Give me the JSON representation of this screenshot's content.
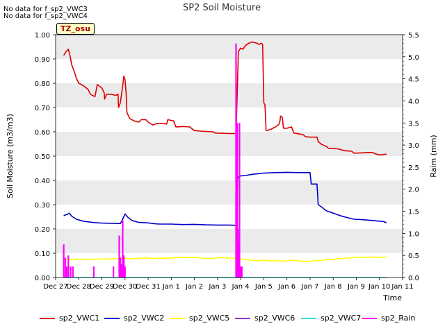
{
  "notes": [
    "No data for f_sp2_VWC3",
    "No data for f_sp2_VWC4"
  ],
  "badge": "TZ_osu",
  "colors": {
    "sp2_VWC1": "#dd0000",
    "sp2_VWC2": "#0000cc",
    "sp2_VWC5": "#ffff00",
    "sp2_VWC6": "#9933cc",
    "sp2_VWC7": "#33dddd",
    "sp2_Rain": "#ff00ff"
  },
  "chart_data": {
    "type": "line",
    "title": "SP2 Soil Moisture",
    "xlabel": "Time",
    "ylabel": "Soil Moisture (m3/m3)",
    "y2label": "Raim (mm)",
    "x_ticks": [
      "Dec 27",
      "Dec 28",
      "Dec 29",
      "Dec 30",
      "Dec 31",
      "Jan 1",
      "Jan 2",
      "Jan 3",
      "Jan 4",
      "Jan 5",
      "Jan 6",
      "Jan 7",
      "Jan 8",
      "Jan 9",
      "Jan 10",
      "Jan 11"
    ],
    "xlim": [
      0,
      15
    ],
    "ylim": [
      0,
      1.0
    ],
    "y_ticks": [
      "0.00",
      "0.10",
      "0.20",
      "0.30",
      "0.40",
      "0.50",
      "0.60",
      "0.70",
      "0.80",
      "0.90",
      "1.00"
    ],
    "y2lim": [
      0,
      5.5
    ],
    "y2_ticks": [
      "0.0",
      "0.5",
      "1.0",
      "1.5",
      "2.0",
      "2.5",
      "3.0",
      "3.5",
      "4.0",
      "4.5",
      "5.0",
      "5.5"
    ],
    "grid": "horizontal bands",
    "legend": "bottom",
    "series": [
      {
        "name": "sp2_VWC1",
        "axis": "left",
        "points": [
          [
            0.35,
            0.915
          ],
          [
            0.45,
            0.93
          ],
          [
            0.55,
            0.94
          ],
          [
            0.62,
            0.915
          ],
          [
            0.7,
            0.875
          ],
          [
            0.8,
            0.85
          ],
          [
            0.9,
            0.82
          ],
          [
            1.0,
            0.8
          ],
          [
            1.2,
            0.79
          ],
          [
            1.4,
            0.775
          ],
          [
            1.5,
            0.755
          ],
          [
            1.7,
            0.745
          ],
          [
            1.8,
            0.795
          ],
          [
            2.0,
            0.78
          ],
          [
            2.1,
            0.76
          ],
          [
            2.12,
            0.735
          ],
          [
            2.2,
            0.755
          ],
          [
            2.4,
            0.755
          ],
          [
            2.6,
            0.75
          ],
          [
            2.7,
            0.755
          ],
          [
            2.72,
            0.7
          ],
          [
            2.8,
            0.72
          ],
          [
            2.85,
            0.755
          ],
          [
            2.9,
            0.79
          ],
          [
            2.95,
            0.83
          ],
          [
            3.0,
            0.815
          ],
          [
            3.05,
            0.755
          ],
          [
            3.08,
            0.68
          ],
          [
            3.2,
            0.655
          ],
          [
            3.4,
            0.645
          ],
          [
            3.6,
            0.64
          ],
          [
            3.7,
            0.65
          ],
          [
            3.9,
            0.65
          ],
          [
            4.0,
            0.64
          ],
          [
            4.2,
            0.628
          ],
          [
            4.4,
            0.635
          ],
          [
            4.6,
            0.635
          ],
          [
            4.8,
            0.632
          ],
          [
            4.85,
            0.65
          ],
          [
            5.1,
            0.645
          ],
          [
            5.2,
            0.62
          ],
          [
            5.5,
            0.622
          ],
          [
            5.8,
            0.62
          ],
          [
            5.9,
            0.612
          ],
          [
            6.0,
            0.605
          ],
          [
            6.4,
            0.602
          ],
          [
            6.8,
            0.6
          ],
          [
            6.9,
            0.595
          ],
          [
            7.5,
            0.593
          ],
          [
            7.8,
            0.593
          ],
          [
            7.85,
            0.75
          ],
          [
            7.9,
            0.93
          ],
          [
            8.0,
            0.945
          ],
          [
            8.1,
            0.94
          ],
          [
            8.2,
            0.955
          ],
          [
            8.35,
            0.965
          ],
          [
            8.5,
            0.97
          ],
          [
            8.7,
            0.965
          ],
          [
            8.8,
            0.96
          ],
          [
            8.9,
            0.965
          ],
          [
            8.95,
            0.96
          ],
          [
            9.0,
            0.72
          ],
          [
            9.05,
            0.71
          ],
          [
            9.1,
            0.605
          ],
          [
            9.3,
            0.61
          ],
          [
            9.5,
            0.62
          ],
          [
            9.65,
            0.63
          ],
          [
            9.7,
            0.645
          ],
          [
            9.72,
            0.665
          ],
          [
            9.8,
            0.66
          ],
          [
            9.85,
            0.615
          ],
          [
            10.0,
            0.615
          ],
          [
            10.2,
            0.62
          ],
          [
            10.3,
            0.595
          ],
          [
            10.5,
            0.592
          ],
          [
            10.7,
            0.588
          ],
          [
            10.8,
            0.58
          ],
          [
            11.0,
            0.578
          ],
          [
            11.3,
            0.578
          ],
          [
            11.35,
            0.56
          ],
          [
            11.5,
            0.548
          ],
          [
            11.7,
            0.54
          ],
          [
            11.8,
            0.532
          ],
          [
            12.2,
            0.53
          ],
          [
            12.5,
            0.522
          ],
          [
            12.8,
            0.52
          ],
          [
            12.9,
            0.512
          ],
          [
            13.2,
            0.513
          ],
          [
            13.5,
            0.515
          ],
          [
            13.7,
            0.515
          ],
          [
            13.8,
            0.51
          ],
          [
            14.0,
            0.505
          ],
          [
            14.3,
            0.508
          ]
        ]
      },
      {
        "name": "sp2_VWC2",
        "axis": "left",
        "points": [
          [
            0.35,
            0.255
          ],
          [
            0.5,
            0.26
          ],
          [
            0.6,
            0.265
          ],
          [
            0.7,
            0.252
          ],
          [
            0.9,
            0.24
          ],
          [
            1.2,
            0.232
          ],
          [
            1.5,
            0.228
          ],
          [
            1.7,
            0.226
          ],
          [
            2.0,
            0.224
          ],
          [
            2.5,
            0.223
          ],
          [
            2.8,
            0.222
          ],
          [
            2.9,
            0.24
          ],
          [
            3.0,
            0.262
          ],
          [
            3.1,
            0.25
          ],
          [
            3.3,
            0.235
          ],
          [
            3.6,
            0.227
          ],
          [
            4.0,
            0.225
          ],
          [
            4.3,
            0.221
          ],
          [
            4.5,
            0.22
          ],
          [
            5.0,
            0.22
          ],
          [
            5.5,
            0.218
          ],
          [
            6.0,
            0.219
          ],
          [
            6.5,
            0.217
          ],
          [
            7.0,
            0.216
          ],
          [
            7.5,
            0.216
          ],
          [
            7.8,
            0.215
          ],
          [
            7.83,
            0.28
          ],
          [
            7.87,
            0.41
          ],
          [
            7.95,
            0.418
          ],
          [
            8.2,
            0.42
          ],
          [
            8.5,
            0.425
          ],
          [
            8.8,
            0.428
          ],
          [
            9.0,
            0.43
          ],
          [
            9.5,
            0.432
          ],
          [
            10.0,
            0.433
          ],
          [
            10.5,
            0.432
          ],
          [
            10.8,
            0.432
          ],
          [
            11.0,
            0.432
          ],
          [
            11.05,
            0.385
          ],
          [
            11.3,
            0.385
          ],
          [
            11.35,
            0.3
          ],
          [
            11.5,
            0.29
          ],
          [
            11.7,
            0.275
          ],
          [
            12.0,
            0.265
          ],
          [
            12.3,
            0.255
          ],
          [
            12.6,
            0.247
          ],
          [
            12.9,
            0.24
          ],
          [
            13.3,
            0.238
          ],
          [
            13.7,
            0.235
          ],
          [
            14.0,
            0.232
          ],
          [
            14.2,
            0.23
          ],
          [
            14.3,
            0.225
          ]
        ]
      },
      {
        "name": "sp2_VWC5",
        "axis": "left",
        "points": [
          [
            0.35,
            0.075
          ],
          [
            0.6,
            0.073
          ],
          [
            0.9,
            0.076
          ],
          [
            1.2,
            0.074
          ],
          [
            1.5,
            0.076
          ],
          [
            1.8,
            0.075
          ],
          [
            2.1,
            0.077
          ],
          [
            2.4,
            0.076
          ],
          [
            2.7,
            0.078
          ],
          [
            3.0,
            0.08
          ],
          [
            3.3,
            0.077
          ],
          [
            3.6,
            0.079
          ],
          [
            3.9,
            0.081
          ],
          [
            4.2,
            0.078
          ],
          [
            4.5,
            0.08
          ],
          [
            4.8,
            0.079
          ],
          [
            5.1,
            0.081
          ],
          [
            5.4,
            0.083
          ],
          [
            5.7,
            0.082
          ],
          [
            6.0,
            0.083
          ],
          [
            6.3,
            0.08
          ],
          [
            6.6,
            0.078
          ],
          [
            6.9,
            0.08
          ],
          [
            7.2,
            0.082
          ],
          [
            7.5,
            0.08
          ],
          [
            7.8,
            0.079
          ],
          [
            8.1,
            0.076
          ],
          [
            8.4,
            0.072
          ],
          [
            8.7,
            0.069
          ],
          [
            9.0,
            0.071
          ],
          [
            9.3,
            0.068
          ],
          [
            9.6,
            0.07
          ],
          [
            9.9,
            0.067
          ],
          [
            10.2,
            0.071
          ],
          [
            10.5,
            0.069
          ],
          [
            10.8,
            0.066
          ],
          [
            11.1,
            0.068
          ],
          [
            11.4,
            0.07
          ],
          [
            11.7,
            0.073
          ],
          [
            12.0,
            0.075
          ],
          [
            12.3,
            0.078
          ],
          [
            12.6,
            0.08
          ],
          [
            12.9,
            0.082
          ],
          [
            13.2,
            0.084
          ],
          [
            13.5,
            0.083
          ],
          [
            13.8,
            0.085
          ],
          [
            14.1,
            0.082
          ],
          [
            14.3,
            0.084
          ]
        ]
      },
      {
        "name": "sp2_VWC6",
        "axis": "left",
        "points": []
      },
      {
        "name": "sp2_VWC7",
        "axis": "left",
        "points": [
          [
            0.35,
            0.0
          ],
          [
            14.3,
            0.0
          ]
        ]
      },
      {
        "name": "sp2_Rain",
        "axis": "right",
        "bars": [
          [
            0.35,
            0.75
          ],
          [
            0.42,
            0.45
          ],
          [
            0.48,
            0.25
          ],
          [
            0.55,
            0.5
          ],
          [
            0.65,
            0.25
          ],
          [
            0.75,
            0.25
          ],
          [
            1.65,
            0.25
          ],
          [
            2.5,
            0.25
          ],
          [
            2.75,
            0.95
          ],
          [
            2.8,
            0.45
          ],
          [
            2.85,
            0.3
          ],
          [
            2.9,
            1.3
          ],
          [
            2.95,
            0.5
          ],
          [
            3.0,
            0.25
          ],
          [
            7.8,
            5.3
          ],
          [
            7.85,
            3.5
          ],
          [
            7.88,
            1.1
          ],
          [
            7.92,
            0.8
          ],
          [
            7.95,
            3.5
          ],
          [
            8.0,
            0.25
          ],
          [
            8.05,
            0.25
          ]
        ]
      }
    ]
  }
}
